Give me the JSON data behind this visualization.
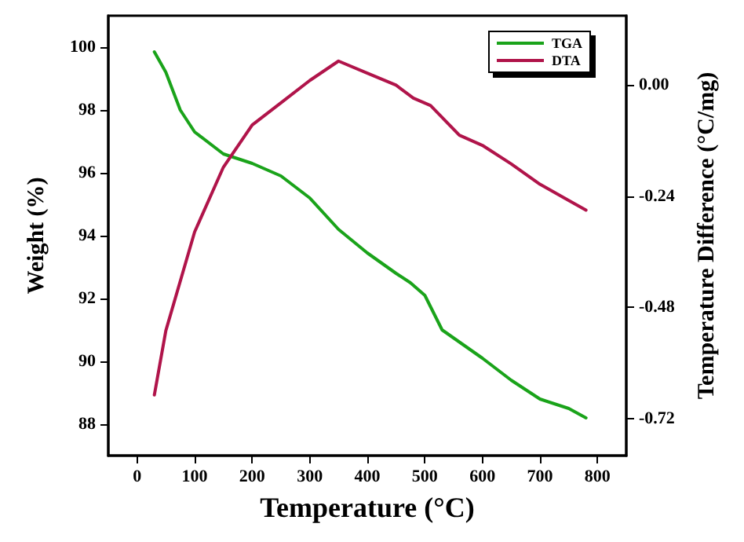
{
  "chart_data": {
    "type": "line",
    "xlabel": "Temperature (°C)",
    "ylabel": "Weight (%)",
    "y2label": "Temperature Difference (°C/mg)",
    "xlim": [
      -50,
      850
    ],
    "xticks": [
      0,
      100,
      200,
      300,
      400,
      500,
      600,
      700,
      800
    ],
    "ylim": [
      87,
      101
    ],
    "yticks": [
      88,
      90,
      92,
      94,
      96,
      98,
      100
    ],
    "y2lim": [
      -0.8,
      0.15
    ],
    "y2ticks": [
      {
        "value": 0,
        "label": "0.00"
      },
      {
        "value": -0.24,
        "label": "-0.24"
      },
      {
        "value": -0.48,
        "label": "-0.48"
      },
      {
        "value": -0.72,
        "label": "-0.72"
      }
    ],
    "grid": false,
    "legend": "top right",
    "marker": "none",
    "line_style": "solid",
    "series": [
      {
        "name": "TGA",
        "color": "#1aa31a",
        "x": [
          30,
          50,
          75,
          100,
          150,
          200,
          250,
          300,
          350,
          400,
          450,
          475,
          500,
          530,
          600,
          650,
          700,
          750,
          780
        ],
        "values": [
          99.85,
          99.2,
          98.0,
          97.3,
          96.6,
          96.3,
          95.9,
          95.2,
          94.2,
          93.45,
          92.8,
          92.5,
          92.1,
          91.0,
          90.1,
          89.4,
          88.8,
          88.5,
          88.2
        ]
      },
      {
        "name": "DTA",
        "color": "#b0144a",
        "axis": "y2",
        "x": [
          30,
          50,
          100,
          150,
          200,
          250,
          300,
          350,
          400,
          450,
          480,
          510,
          560,
          600,
          650,
          700,
          780
        ],
        "values": [
          -0.669,
          -0.53,
          -0.317,
          -0.177,
          -0.086,
          -0.038,
          0.01,
          0.052,
          0.026,
          0.0,
          -0.028,
          -0.044,
          -0.108,
          -0.13,
          -0.17,
          -0.214,
          -0.27
        ]
      }
    ]
  }
}
